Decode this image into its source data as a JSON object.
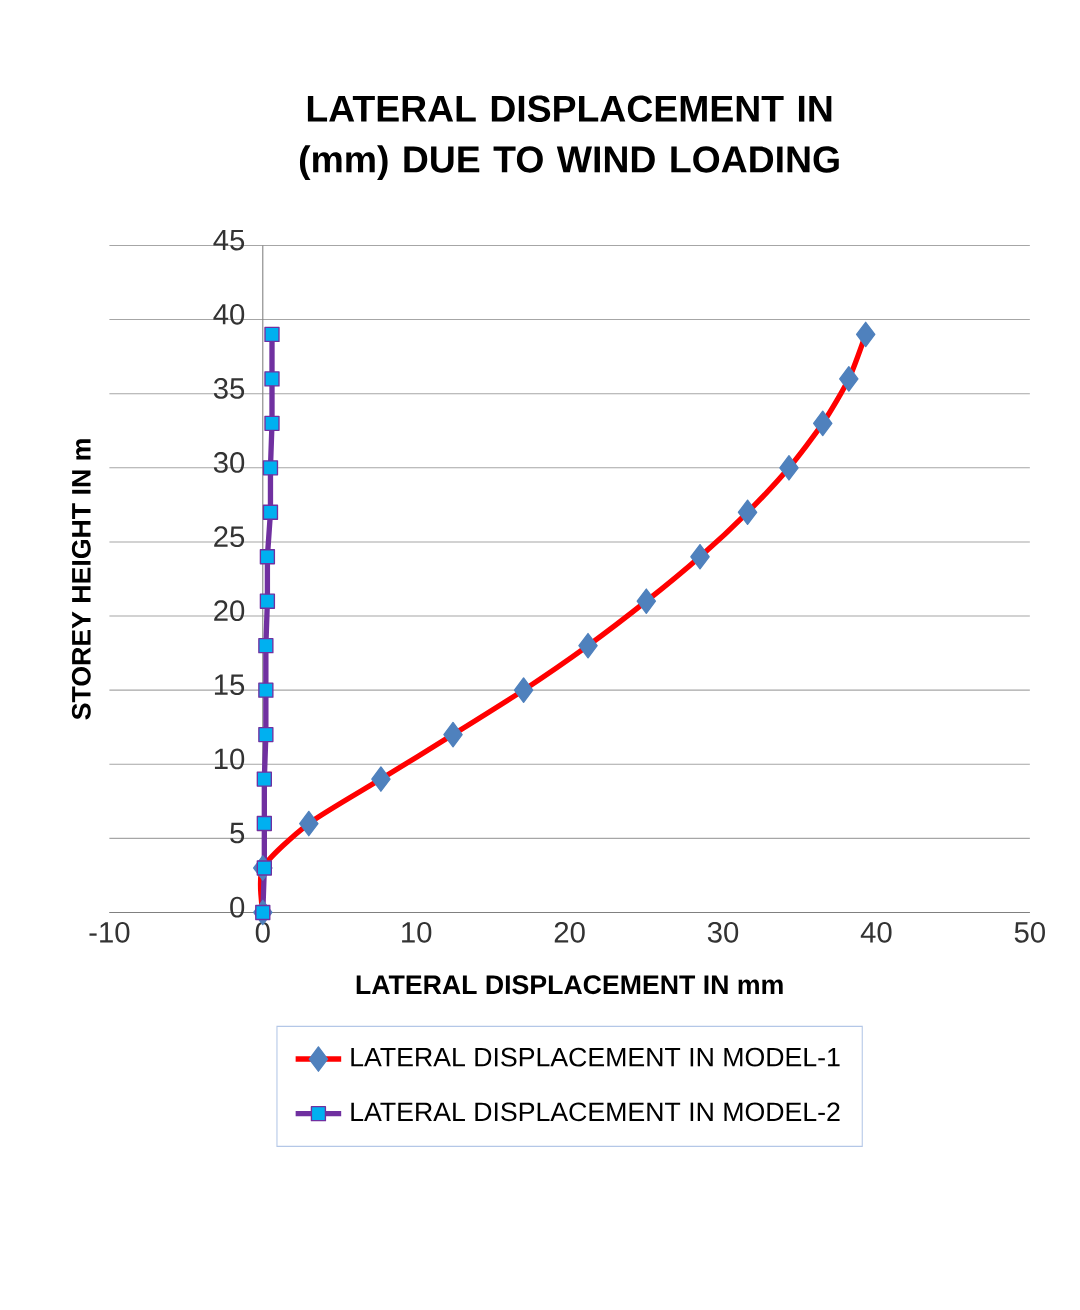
{
  "chart_data": {
    "type": "line",
    "title": "LATERAL DISPLACEMENT IN (mm) DUE TO WIND LOADING",
    "xlabel": "LATERAL DISPLACEMENT IN mm",
    "ylabel": "STOREY HEIGHT IN m",
    "xlim": [
      -10,
      50
    ],
    "xticks": [
      -10,
      0,
      10,
      20,
      30,
      40,
      50
    ],
    "ylim": [
      0,
      45
    ],
    "yticks": [
      0,
      5,
      10,
      15,
      20,
      25,
      30,
      35,
      40,
      45
    ],
    "grid": "y",
    "legend": "bottom",
    "line_style": "solid",
    "series": [
      {
        "name": "LATERAL DISPLACEMENT IN MODEL-1",
        "color": "#ff0000",
        "marker": "diamond",
        "x": [
          0,
          0,
          3.0,
          7.7,
          12.4,
          17.0,
          21.2,
          25.0,
          28.5,
          31.6,
          34.3,
          36.5,
          38.2,
          39.3
        ],
        "values": [
          0,
          3,
          6,
          9,
          12,
          15,
          18,
          21,
          24,
          27,
          30,
          33,
          36,
          39
        ]
      },
      {
        "name": "LATERAL DISPLACEMENT IN MODEL-2",
        "color": "#7030a0",
        "marker": "square",
        "x": [
          0,
          0.1,
          0.1,
          0.1,
          0.2,
          0.2,
          0.2,
          0.3,
          0.3,
          0.5,
          0.5,
          0.6,
          0.6,
          0.6
        ],
        "values": [
          0,
          3,
          6,
          9,
          12,
          15,
          18,
          21,
          24,
          27,
          30,
          33,
          36,
          39
        ]
      }
    ]
  }
}
